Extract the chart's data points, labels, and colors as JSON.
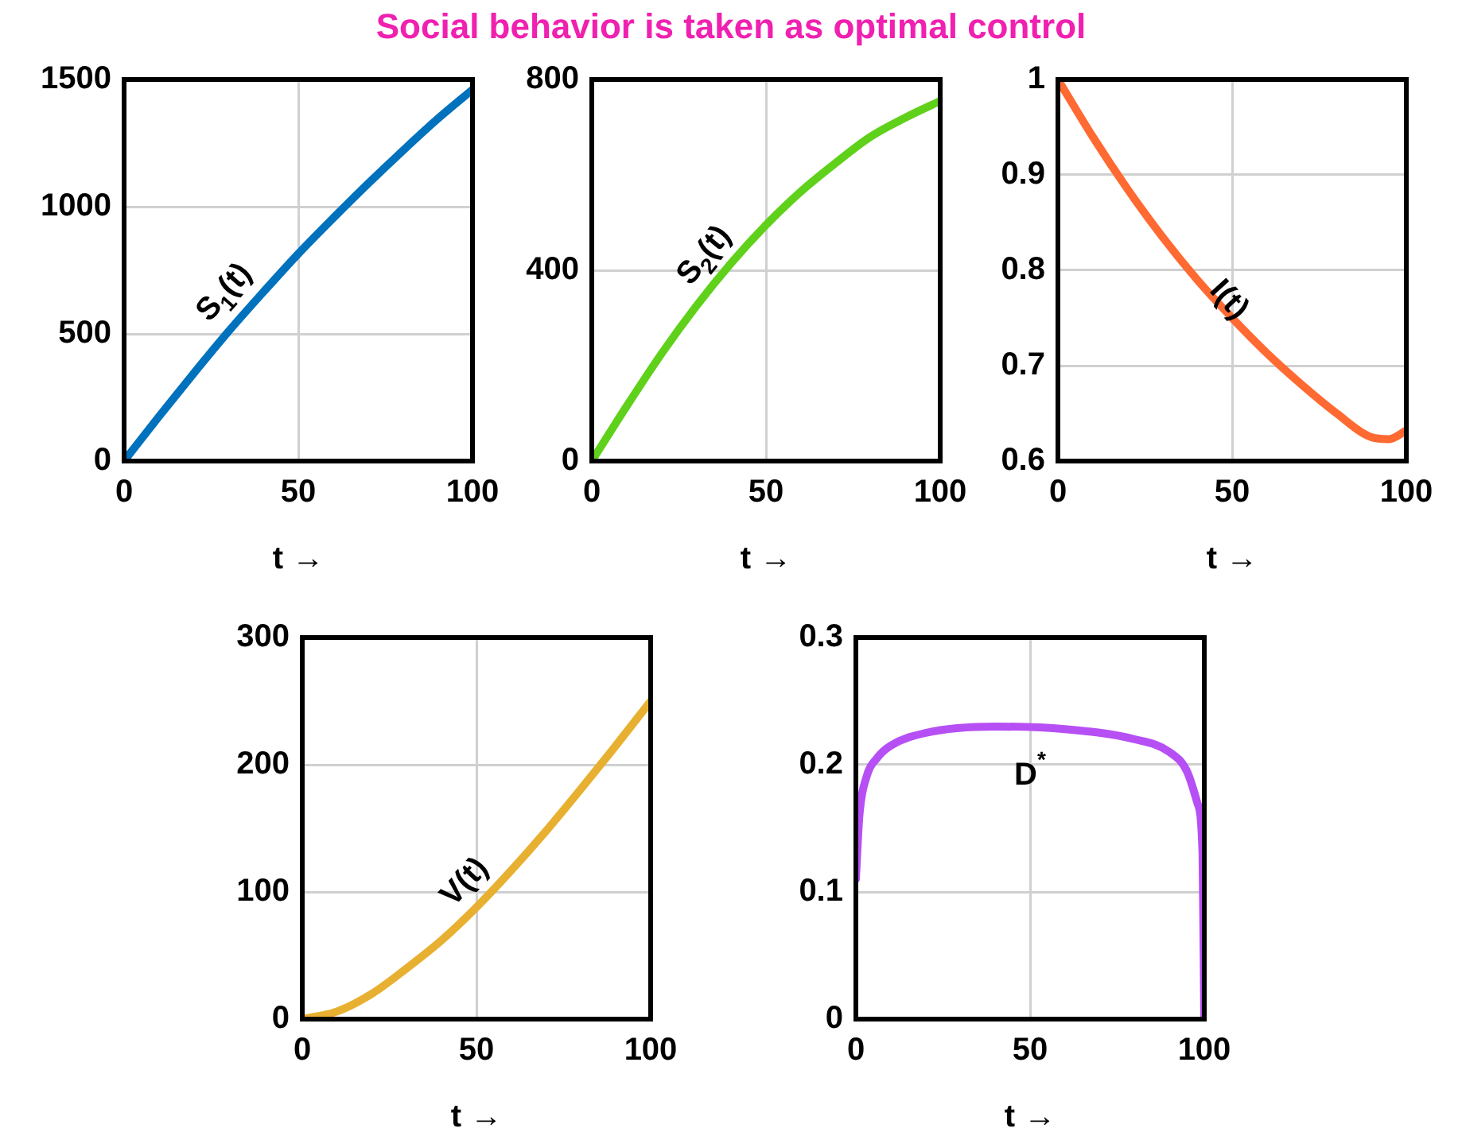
{
  "chart_data": [
    {
      "type": "line",
      "title": "Social behavior is taken as optimal control",
      "xlabel": "t →",
      "x": [
        0,
        10,
        20,
        30,
        40,
        50,
        60,
        70,
        80,
        90,
        100
      ],
      "xlim": [
        0,
        100
      ],
      "xticks": [
        0,
        50,
        100
      ],
      "ylim": [
        0,
        1500
      ],
      "yticks": [
        0,
        500,
        1000,
        1500
      ],
      "grid": true,
      "series": [
        {
          "color": "#0072bd",
          "values": [
            0,
            175,
            345,
            510,
            665,
            815,
            955,
            1090,
            1220,
            1345,
            1460
          ]
        }
      ],
      "annotations": [
        "S$_{1}$(t)"
      ]
    },
    {
      "type": "line",
      "xlabel": "t →",
      "x": [
        0,
        10,
        20,
        30,
        40,
        50,
        60,
        70,
        80,
        90,
        100
      ],
      "xlim": [
        0,
        100
      ],
      "xticks": [
        0,
        50,
        100
      ],
      "ylim": [
        0,
        800
      ],
      "yticks": [
        0,
        400,
        800
      ],
      "grid": true,
      "series": [
        {
          "color": "#5fd11a",
          "values": [
            0,
            115,
            225,
            325,
            415,
            495,
            565,
            625,
            680,
            720,
            755
          ]
        }
      ],
      "annotations": [
        "S$_{2}$(t)"
      ]
    },
    {
      "type": "line",
      "xlabel": "t →",
      "x": [
        0,
        10,
        20,
        30,
        40,
        50,
        60,
        70,
        80,
        90,
        95,
        100
      ],
      "xlim": [
        0,
        100
      ],
      "xticks": [
        0,
        50,
        100
      ],
      "ylim": [
        0.6,
        1
      ],
      "yticks": [
        0.6,
        0.7,
        0.8,
        0.9,
        1
      ],
      "grid": true,
      "series": [
        {
          "color": "#ff6a33",
          "values": [
            1,
            0.94,
            0.885,
            0.835,
            0.79,
            0.75,
            0.713,
            0.68,
            0.65,
            0.625,
            0.623,
            0.632
          ]
        }
      ],
      "annotations": [
        "I(t)"
      ]
    },
    {
      "type": "line",
      "xlabel": "t →",
      "x": [
        0,
        10,
        20,
        30,
        40,
        50,
        60,
        70,
        80,
        90,
        100
      ],
      "xlim": [
        0,
        100
      ],
      "xticks": [
        0,
        50,
        100
      ],
      "ylim": [
        0,
        300
      ],
      "yticks": [
        0,
        100,
        200,
        300
      ],
      "grid": true,
      "series": [
        {
          "color": "#e8b030",
          "values": [
            0,
            6,
            20,
            40,
            62,
            88,
            117,
            148,
            181,
            215,
            250
          ]
        }
      ],
      "annotations": [
        "V(t)"
      ]
    },
    {
      "type": "line",
      "xlabel": "t →",
      "x": [
        0,
        1,
        3,
        6,
        10,
        20,
        40,
        60,
        80,
        90,
        95,
        98,
        99.5,
        100
      ],
      "xlim": [
        0,
        100
      ],
      "xticks": [
        0,
        50,
        100
      ],
      "ylim": [
        0,
        0.3
      ],
      "yticks": [
        0,
        0.1,
        0.2,
        0.3
      ],
      "grid": true,
      "series": [
        {
          "color": "#b650f5",
          "values": [
            0.11,
            0.16,
            0.19,
            0.205,
            0.215,
            0.225,
            0.23,
            0.228,
            0.22,
            0.21,
            0.195,
            0.17,
            0.13,
            0
          ]
        }
      ],
      "annotations": [
        "D$^{*}$"
      ]
    }
  ]
}
